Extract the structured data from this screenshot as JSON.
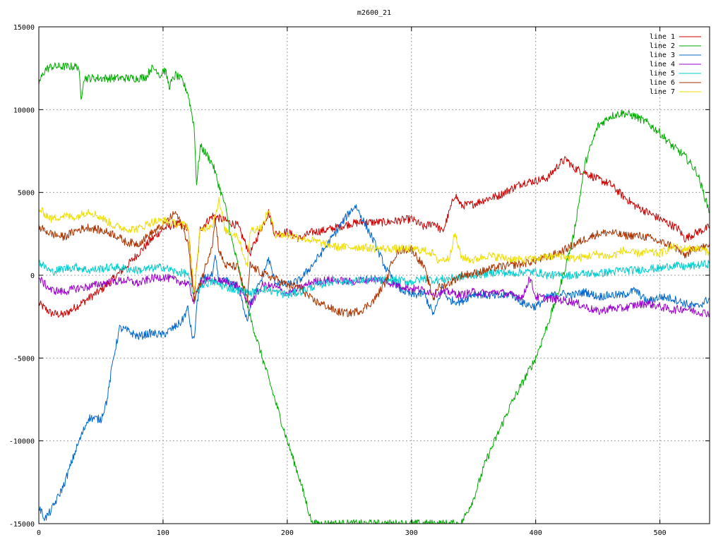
{
  "chart_data": {
    "type": "line",
    "title": "m2600_21",
    "xlabel": "",
    "ylabel": "",
    "xlim": [
      0,
      540
    ],
    "ylim": [
      -15000,
      15000
    ],
    "xticks": [
      0,
      100,
      200,
      300,
      400,
      500
    ],
    "xtick_labels": [
      "0",
      "100",
      "200",
      "300",
      "400",
      "500"
    ],
    "yticks": [
      -15000,
      -10000,
      -5000,
      0,
      5000,
      10000,
      15000
    ],
    "ytick_labels": [
      "-15000",
      "-10000",
      "-5000",
      "0",
      "5000",
      "10000",
      "15000"
    ],
    "grid": true,
    "legend_position": "top-right",
    "series": [
      {
        "name": "line 1",
        "color": "#cc0000",
        "x": [
          0,
          10,
          20,
          30,
          40,
          50,
          60,
          70,
          80,
          90,
          100,
          110,
          120,
          125,
          130,
          140,
          150,
          160,
          170,
          180,
          185,
          190,
          200,
          210,
          220,
          230,
          240,
          250,
          260,
          270,
          280,
          290,
          300,
          310,
          318,
          325,
          330,
          335,
          340,
          350,
          360,
          370,
          380,
          390,
          400,
          410,
          420,
          425,
          430,
          440,
          450,
          460,
          470,
          480,
          490,
          500,
          510,
          515,
          520,
          530,
          540
        ],
        "y": [
          -1700,
          -2300,
          -2400,
          -1900,
          -1400,
          -900,
          -200,
          500,
          1300,
          2100,
          2800,
          3100,
          2900,
          -1300,
          2800,
          3600,
          3300,
          3000,
          1300,
          3000,
          3800,
          2500,
          2600,
          2200,
          2600,
          2700,
          2900,
          3100,
          3200,
          3200,
          3200,
          3300,
          3400,
          2900,
          3200,
          2600,
          3700,
          4900,
          4200,
          4300,
          4600,
          4800,
          5200,
          5600,
          5700,
          5900,
          6800,
          7000,
          6500,
          6200,
          5800,
          5500,
          4800,
          4200,
          3800,
          3400,
          3000,
          2800,
          2200,
          2600,
          2900
        ]
      },
      {
        "name": "line 2",
        "color": "#00aa00",
        "x": [
          0,
          5,
          10,
          20,
          30,
          32,
          34,
          36,
          40,
          50,
          60,
          70,
          80,
          87,
          90,
          95,
          98,
          100,
          102,
          105,
          110,
          115,
          120,
          125,
          127,
          130,
          135,
          140,
          145,
          150,
          155,
          160,
          165,
          170,
          180,
          190,
          200,
          210,
          220,
          340,
          350,
          360,
          370,
          380,
          390,
          400,
          410,
          420,
          430,
          440,
          450,
          460,
          470,
          480,
          490,
          500,
          510,
          520,
          530,
          540
        ],
        "y": [
          11600,
          12400,
          12600,
          12600,
          12600,
          12600,
          10600,
          11900,
          11900,
          11900,
          11900,
          11900,
          11900,
          12000,
          12500,
          12400,
          12000,
          12400,
          12300,
          11400,
          12100,
          11800,
          11000,
          9000,
          5500,
          7800,
          7300,
          6700,
          5400,
          4200,
          2200,
          700,
          -1000,
          -2500,
          -5000,
          -7500,
          -10000,
          -12300,
          -15000,
          -15000,
          -13500,
          -11200,
          -9500,
          -7800,
          -6400,
          -5000,
          -2900,
          -600,
          2200,
          6800,
          9000,
          9600,
          9800,
          9600,
          9200,
          8600,
          7800,
          7200,
          6200,
          3800
        ]
      },
      {
        "name": "line 3",
        "color": "#0066cc",
        "x": [
          0,
          5,
          10,
          20,
          30,
          40,
          50,
          55,
          60,
          65,
          70,
          80,
          90,
          100,
          110,
          115,
          120,
          123,
          125,
          127,
          130,
          140,
          142,
          145,
          150,
          160,
          168,
          170,
          180,
          185,
          190,
          200,
          210,
          220,
          230,
          240,
          250,
          255,
          260,
          270,
          280,
          290,
          300,
          310,
          318,
          325,
          330,
          340,
          350,
          360,
          370,
          380,
          390,
          400,
          410,
          420,
          430,
          440,
          450,
          460,
          470,
          480,
          490,
          500,
          510,
          520,
          530,
          540
        ],
        "y": [
          -14000,
          -14700,
          -14200,
          -12700,
          -10500,
          -8600,
          -8700,
          -7500,
          -5000,
          -3200,
          -3300,
          -3700,
          -3500,
          -3600,
          -3100,
          -2800,
          -2000,
          -3500,
          -4000,
          -2000,
          -300,
          0,
          1100,
          -400,
          -300,
          -700,
          -2700,
          -1800,
          -100,
          1000,
          -400,
          -600,
          -300,
          600,
          1600,
          2700,
          3800,
          4200,
          3500,
          2000,
          300,
          -800,
          -1200,
          -1100,
          -2400,
          -700,
          -1500,
          -1600,
          -1100,
          -1200,
          -1300,
          -1100,
          -1700,
          -1900,
          -1300,
          -1100,
          -1200,
          -1000,
          -1300,
          -1200,
          -1200,
          -900,
          -1600,
          -1300,
          -1400,
          -1700,
          -1900,
          -1400
        ]
      },
      {
        "name": "line 4",
        "color": "#9900cc",
        "x": [
          0,
          10,
          20,
          30,
          40,
          50,
          60,
          70,
          80,
          90,
          100,
          110,
          120,
          125,
          130,
          140,
          150,
          160,
          170,
          180,
          190,
          200,
          210,
          220,
          230,
          240,
          250,
          260,
          270,
          280,
          290,
          300,
          310,
          320,
          330,
          340,
          350,
          360,
          370,
          380,
          390,
          395,
          400,
          410,
          420,
          430,
          440,
          450,
          460,
          470,
          480,
          490,
          500,
          510,
          520,
          530,
          540
        ],
        "y": [
          -200,
          -900,
          -1000,
          -800,
          -700,
          -500,
          -400,
          -300,
          -500,
          -200,
          -100,
          -300,
          -500,
          -1600,
          -400,
          -300,
          -400,
          -600,
          -1800,
          -600,
          -700,
          -1100,
          -800,
          -400,
          -300,
          -300,
          -400,
          -300,
          -200,
          -400,
          -600,
          -800,
          -900,
          -1100,
          -1000,
          -1200,
          -1000,
          -1100,
          -1000,
          -1200,
          -1300,
          -100,
          -1300,
          -1400,
          -1500,
          -1600,
          -1900,
          -2200,
          -2000,
          -2000,
          -1800,
          -1700,
          -1900,
          -2100,
          -2000,
          -2200,
          -2300
        ]
      },
      {
        "name": "line 5",
        "color": "#00cccc",
        "x": [
          0,
          10,
          20,
          30,
          40,
          50,
          60,
          70,
          80,
          90,
          100,
          110,
          120,
          125,
          130,
          140,
          150,
          160,
          170,
          180,
          190,
          200,
          210,
          220,
          230,
          240,
          250,
          260,
          270,
          280,
          290,
          300,
          310,
          320,
          330,
          340,
          350,
          360,
          370,
          380,
          390,
          400,
          410,
          420,
          430,
          440,
          450,
          460,
          470,
          480,
          490,
          500,
          510,
          520,
          530,
          540
        ],
        "y": [
          800,
          200,
          400,
          500,
          300,
          400,
          500,
          400,
          300,
          400,
          500,
          200,
          100,
          -1500,
          -600,
          -400,
          -700,
          -900,
          -1100,
          -800,
          -1000,
          -1200,
          -1000,
          -700,
          -500,
          -300,
          -400,
          -300,
          -300,
          -300,
          -300,
          -400,
          -200,
          -300,
          -200,
          -100,
          0,
          100,
          200,
          100,
          200,
          200,
          0,
          0,
          0,
          100,
          100,
          200,
          300,
          300,
          400,
          400,
          600,
          500,
          600,
          700
        ]
      },
      {
        "name": "line 6",
        "color": "#aa3300",
        "x": [
          0,
          10,
          20,
          30,
          40,
          50,
          60,
          70,
          80,
          90,
          100,
          110,
          115,
          120,
          125,
          130,
          140,
          142,
          145,
          150,
          160,
          168,
          170,
          180,
          190,
          200,
          210,
          220,
          230,
          240,
          250,
          260,
          270,
          280,
          285,
          290,
          300,
          310,
          318,
          320,
          330,
          340,
          350,
          360,
          370,
          380,
          390,
          400,
          410,
          420,
          430,
          440,
          450,
          460,
          470,
          480,
          490,
          500,
          510,
          520,
          530,
          540
        ],
        "y": [
          2900,
          2500,
          2300,
          2700,
          2900,
          2700,
          2500,
          2000,
          1900,
          2500,
          3000,
          3800,
          3000,
          2000,
          -1500,
          -500,
          2000,
          3500,
          1500,
          600,
          500,
          -1500,
          600,
          100,
          -200,
          -600,
          -700,
          -1500,
          -1800,
          -2200,
          -2300,
          -2100,
          -1500,
          -300,
          1000,
          1500,
          1600,
          500,
          -1500,
          -800,
          -500,
          0,
          100,
          300,
          500,
          600,
          700,
          900,
          1100,
          1400,
          1800,
          2200,
          2500,
          2600,
          2400,
          2400,
          2300,
          2000,
          1800,
          1200,
          1700,
          1700
        ]
      },
      {
        "name": "line 7",
        "color": "#eedd00",
        "x": [
          0,
          10,
          20,
          30,
          40,
          50,
          60,
          70,
          80,
          90,
          100,
          110,
          120,
          125,
          130,
          140,
          145,
          150,
          160,
          168,
          170,
          180,
          185,
          190,
          200,
          210,
          220,
          230,
          240,
          250,
          260,
          270,
          280,
          290,
          300,
          310,
          318,
          320,
          330,
          335,
          340,
          350,
          360,
          370,
          380,
          390,
          400,
          410,
          420,
          430,
          440,
          450,
          460,
          470,
          480,
          490,
          500,
          510,
          520,
          530,
          540
        ],
        "y": [
          4000,
          3400,
          3600,
          3500,
          3900,
          3500,
          3000,
          2800,
          2800,
          3200,
          3300,
          3100,
          3000,
          -1100,
          2700,
          3100,
          4500,
          2700,
          2400,
          500,
          2700,
          2900,
          4000,
          2500,
          2400,
          2300,
          2100,
          1900,
          1700,
          1700,
          1700,
          1600,
          1600,
          1600,
          1600,
          1500,
          1300,
          900,
          1000,
          2500,
          1100,
          900,
          1200,
          1100,
          1000,
          900,
          1000,
          1100,
          1200,
          1000,
          1100,
          1300,
          1100,
          1500,
          1300,
          1400,
          1300,
          1700,
          1600,
          1600,
          1400
        ]
      }
    ]
  }
}
